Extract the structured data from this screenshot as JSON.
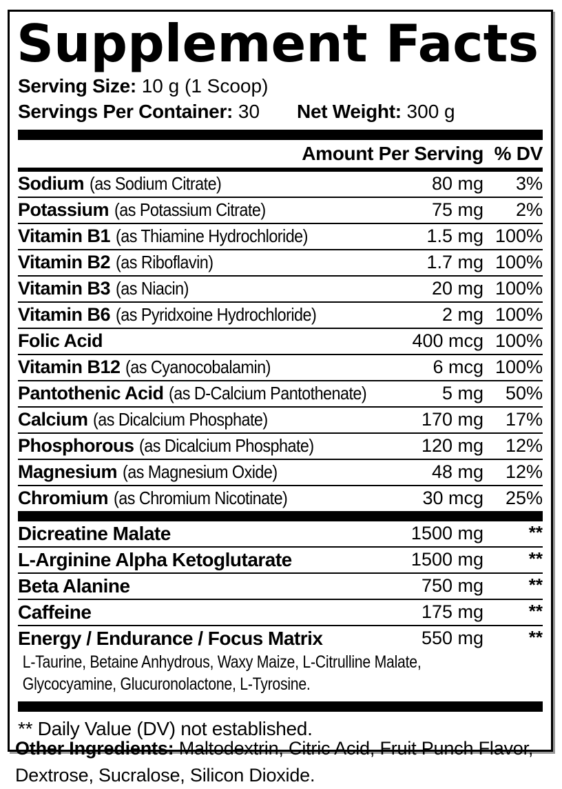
{
  "colors": {
    "ink": "#000000",
    "paper": "#ffffff"
  },
  "panel": {
    "title": "Supplement Facts",
    "serving_size_label": "Serving Size:",
    "serving_size_value": "10 g (1 Scoop)",
    "servings_label": "Servings Per Container:",
    "servings_value": "30",
    "net_weight_label": "Net Weight:",
    "net_weight_value": "300 g",
    "col_amount_header": "Amount Per Serving",
    "col_dv_header": "% DV",
    "nutrients": [
      {
        "name": "Sodium",
        "form": "(as Sodium Citrate)",
        "amount": "80 mg",
        "dv": "3%"
      },
      {
        "name": "Potassium",
        "form": "(as Potassium Citrate)",
        "amount": "75 mg",
        "dv": "2%"
      },
      {
        "name": "Vitamin B1",
        "form": "(as Thiamine Hydrochloride)",
        "amount": "1.5 mg",
        "dv": "100%"
      },
      {
        "name": "Vitamin B2",
        "form": "(as Riboflavin)",
        "amount": "1.7 mg",
        "dv": "100%"
      },
      {
        "name": "Vitamin B3",
        "form": "(as Niacin)",
        "amount": "20 mg",
        "dv": "100%"
      },
      {
        "name": "Vitamin B6",
        "form": "(as Pyridxoine Hydrochloride)",
        "amount": "2 mg",
        "dv": "100%"
      },
      {
        "name": "Folic Acid",
        "form": "",
        "amount": "400 mcg",
        "dv": "100%"
      },
      {
        "name": "Vitamin B12",
        "form": "(as Cyanocobalamin)",
        "amount": "6 mcg",
        "dv": "100%"
      },
      {
        "name": "Pantothenic Acid",
        "form": "(as D-Calcium Pantothenate)",
        "amount": "5 mg",
        "dv": "50%"
      },
      {
        "name": "Calcium",
        "form": "(as Dicalcium Phosphate)",
        "amount": "170 mg",
        "dv": "17%"
      },
      {
        "name": "Phosphorous",
        "form": "(as Dicalcium Phosphate)",
        "amount": "120 mg",
        "dv": "12%"
      },
      {
        "name": "Magnesium",
        "form": "(as Magnesium Oxide)",
        "amount": "48 mg",
        "dv": "12%"
      },
      {
        "name": "Chromium",
        "form": "(as Chromium Nicotinate)",
        "amount": "30 mcg",
        "dv": "25%"
      }
    ],
    "blends": [
      {
        "name": "Dicreatine Malate",
        "amount": "1500 mg",
        "dv": "**"
      },
      {
        "name": "L-Arginine Alpha Ketoglutarate",
        "amount": "1500 mg",
        "dv": "**"
      },
      {
        "name": "Beta Alanine",
        "amount": "750 mg",
        "dv": "**"
      },
      {
        "name": "Caffeine",
        "amount": "175 mg",
        "dv": "**"
      },
      {
        "name": "Energy / Endurance / Focus Matrix",
        "amount": "550 mg",
        "dv": "**",
        "sub": "L-Taurine, Betaine Anhydrous, Waxy Maize, L-Citrulline Malate, Glycocyamine, Glucuronolactone, L-Tyrosine."
      }
    ],
    "footnote": "** Daily Value (DV) not established."
  },
  "other_ingredients": {
    "label": "Other Ingredients:",
    "text": "Maltodextrin, Citric Acid, Fruit Punch Flavor, Dextrose, Sucralose, Silicon Dioxide."
  }
}
